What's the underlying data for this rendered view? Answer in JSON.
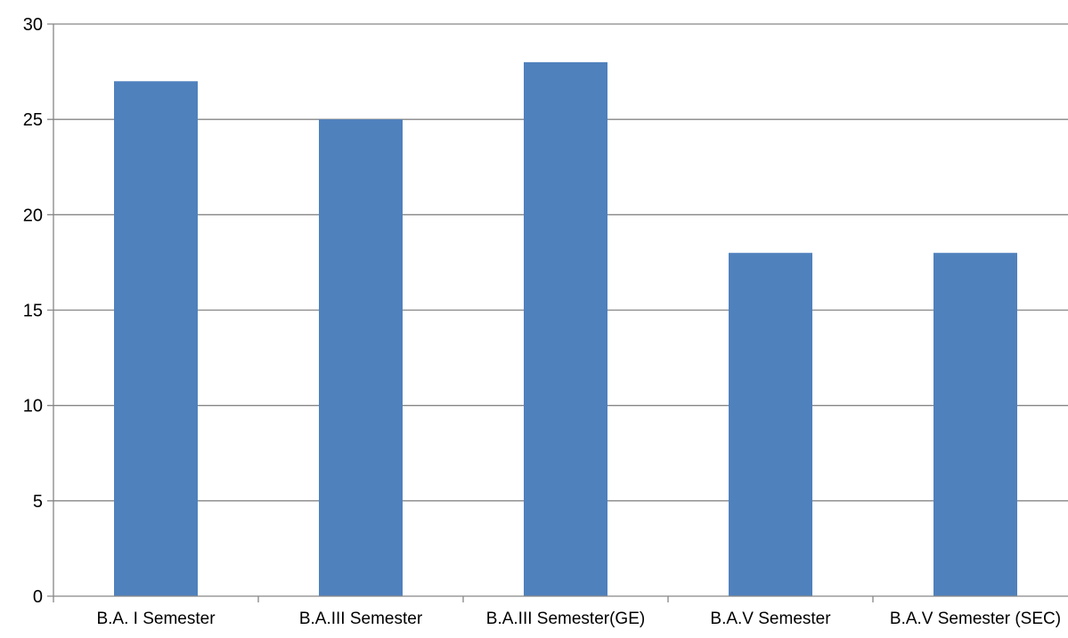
{
  "colors": {
    "bar": "#4F81BD",
    "gridline": "#868686",
    "axis": "#868686",
    "text": "#000000",
    "background": "#FFFFFF"
  },
  "chart_data": {
    "type": "bar",
    "categories": [
      "B.A. I Semester",
      "B.A.III Semester",
      "B.A.III Semester(GE)",
      "B.A.V Semester",
      "B.A.V Semester (SEC)"
    ],
    "values": [
      27,
      25,
      28,
      18,
      18
    ],
    "ylim": [
      0,
      30
    ],
    "yticks": [
      0,
      5,
      10,
      15,
      20,
      25,
      30
    ],
    "grid": true,
    "legend": "none"
  }
}
